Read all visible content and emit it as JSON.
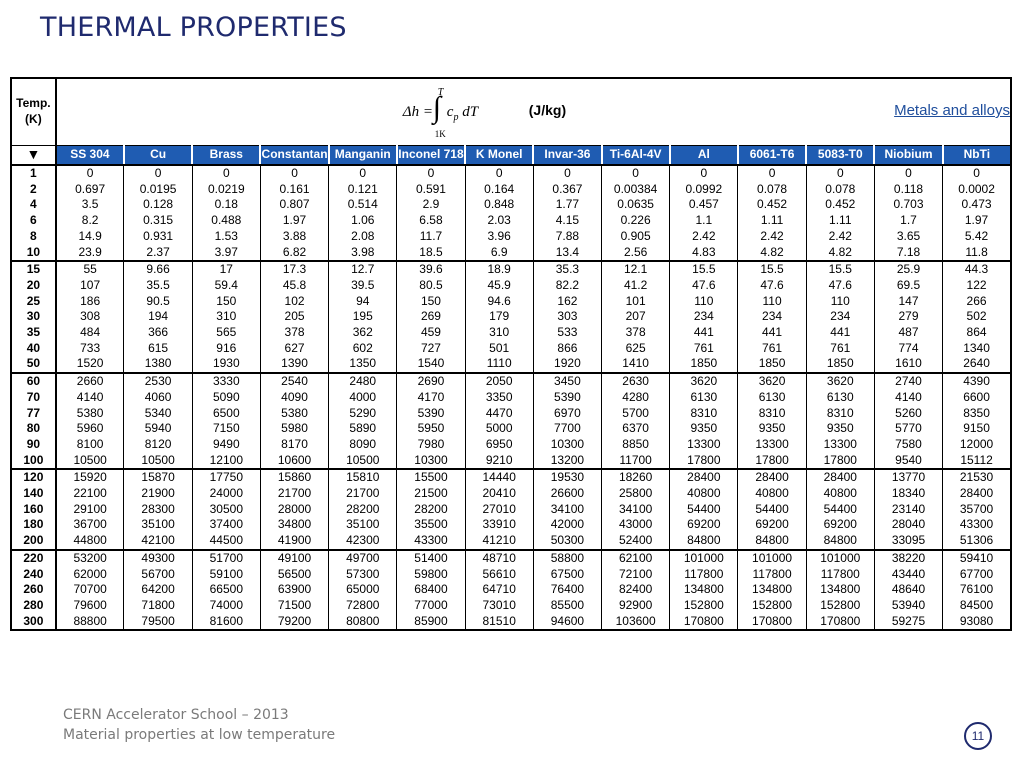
{
  "title": "THERMAL PROPERTIES",
  "header": {
    "temp_label_line1": "Temp.",
    "temp_label_line2": "(K)",
    "arrow": "▼",
    "formula": {
      "delta_h": "Δh =",
      "integral": "∫",
      "upper_limit": "T",
      "lower_limit": "1K",
      "integrand": "c",
      "integrand_sub": "p",
      "differential": "dT"
    },
    "unit": "(J/kg)",
    "link": "Metals and alloys"
  },
  "materials": [
    "SS 304",
    "Cu",
    "Brass",
    "Constantan",
    "Manganin",
    "Inconel 718",
    "K Monel",
    "Invar-36",
    "Ti-6Al-4V",
    "Al",
    "6061-T6",
    "5083-T0",
    "Niobium",
    "NbTi"
  ],
  "groups": [
    [
      {
        "t": "1",
        "v": [
          "0",
          "0",
          "0",
          "0",
          "0",
          "0",
          "0",
          "0",
          "0",
          "0",
          "0",
          "0",
          "0",
          "0"
        ]
      },
      {
        "t": "2",
        "v": [
          "0.697",
          "0.0195",
          "0.0219",
          "0.161",
          "0.121",
          "0.591",
          "0.164",
          "0.367",
          "0.00384",
          "0.0992",
          "0.078",
          "0.078",
          "0.118",
          "0.0002"
        ]
      },
      {
        "t": "4",
        "v": [
          "3.5",
          "0.128",
          "0.18",
          "0.807",
          "0.514",
          "2.9",
          "0.848",
          "1.77",
          "0.0635",
          "0.457",
          "0.452",
          "0.452",
          "0.703",
          "0.473"
        ]
      },
      {
        "t": "6",
        "v": [
          "8.2",
          "0.315",
          "0.488",
          "1.97",
          "1.06",
          "6.58",
          "2.03",
          "4.15",
          "0.226",
          "1.1",
          "1.11",
          "1.11",
          "1.7",
          "1.97"
        ]
      },
      {
        "t": "8",
        "v": [
          "14.9",
          "0.931",
          "1.53",
          "3.88",
          "2.08",
          "11.7",
          "3.96",
          "7.88",
          "0.905",
          "2.42",
          "2.42",
          "2.42",
          "3.65",
          "5.42"
        ]
      },
      {
        "t": "10",
        "v": [
          "23.9",
          "2.37",
          "3.97",
          "6.82",
          "3.98",
          "18.5",
          "6.9",
          "13.4",
          "2.56",
          "4.83",
          "4.82",
          "4.82",
          "7.18",
          "11.8"
        ]
      }
    ],
    [
      {
        "t": "15",
        "v": [
          "55",
          "9.66",
          "17",
          "17.3",
          "12.7",
          "39.6",
          "18.9",
          "35.3",
          "12.1",
          "15.5",
          "15.5",
          "15.5",
          "25.9",
          "44.3"
        ]
      },
      {
        "t": "20",
        "v": [
          "107",
          "35.5",
          "59.4",
          "45.8",
          "39.5",
          "80.5",
          "45.9",
          "82.2",
          "41.2",
          "47.6",
          "47.6",
          "47.6",
          "69.5",
          "122"
        ]
      },
      {
        "t": "25",
        "v": [
          "186",
          "90.5",
          "150",
          "102",
          "94",
          "150",
          "94.6",
          "162",
          "101",
          "110",
          "110",
          "110",
          "147",
          "266"
        ]
      },
      {
        "t": "30",
        "v": [
          "308",
          "194",
          "310",
          "205",
          "195",
          "269",
          "179",
          "303",
          "207",
          "234",
          "234",
          "234",
          "279",
          "502"
        ]
      },
      {
        "t": "35",
        "v": [
          "484",
          "366",
          "565",
          "378",
          "362",
          "459",
          "310",
          "533",
          "378",
          "441",
          "441",
          "441",
          "487",
          "864"
        ]
      },
      {
        "t": "40",
        "v": [
          "733",
          "615",
          "916",
          "627",
          "602",
          "727",
          "501",
          "866",
          "625",
          "761",
          "761",
          "761",
          "774",
          "1340"
        ]
      },
      {
        "t": "50",
        "v": [
          "1520",
          "1380",
          "1930",
          "1390",
          "1350",
          "1540",
          "1110",
          "1920",
          "1410",
          "1850",
          "1850",
          "1850",
          "1610",
          "2640"
        ]
      }
    ],
    [
      {
        "t": "60",
        "v": [
          "2660",
          "2530",
          "3330",
          "2540",
          "2480",
          "2690",
          "2050",
          "3450",
          "2630",
          "3620",
          "3620",
          "3620",
          "2740",
          "4390"
        ]
      },
      {
        "t": "70",
        "v": [
          "4140",
          "4060",
          "5090",
          "4090",
          "4000",
          "4170",
          "3350",
          "5390",
          "4280",
          "6130",
          "6130",
          "6130",
          "4140",
          "6600"
        ]
      },
      {
        "t": "77",
        "v": [
          "5380",
          "5340",
          "6500",
          "5380",
          "5290",
          "5390",
          "4470",
          "6970",
          "5700",
          "8310",
          "8310",
          "8310",
          "5260",
          "8350"
        ]
      },
      {
        "t": "80",
        "v": [
          "5960",
          "5940",
          "7150",
          "5980",
          "5890",
          "5950",
          "5000",
          "7700",
          "6370",
          "9350",
          "9350",
          "9350",
          "5770",
          "9150"
        ]
      },
      {
        "t": "90",
        "v": [
          "8100",
          "8120",
          "9490",
          "8170",
          "8090",
          "7980",
          "6950",
          "10300",
          "8850",
          "13300",
          "13300",
          "13300",
          "7580",
          "12000"
        ]
      },
      {
        "t": "100",
        "v": [
          "10500",
          "10500",
          "12100",
          "10600",
          "10500",
          "10300",
          "9210",
          "13200",
          "11700",
          "17800",
          "17800",
          "17800",
          "9540",
          "15112"
        ]
      }
    ],
    [
      {
        "t": "120",
        "v": [
          "15920",
          "15870",
          "17750",
          "15860",
          "15810",
          "15500",
          "14440",
          "19530",
          "18260",
          "28400",
          "28400",
          "28400",
          "13770",
          "21530"
        ]
      },
      {
        "t": "140",
        "v": [
          "22100",
          "21900",
          "24000",
          "21700",
          "21700",
          "21500",
          "20410",
          "26600",
          "25800",
          "40800",
          "40800",
          "40800",
          "18340",
          "28400"
        ]
      },
      {
        "t": "160",
        "v": [
          "29100",
          "28300",
          "30500",
          "28000",
          "28200",
          "28200",
          "27010",
          "34100",
          "34100",
          "54400",
          "54400",
          "54400",
          "23140",
          "35700"
        ]
      },
      {
        "t": "180",
        "v": [
          "36700",
          "35100",
          "37400",
          "34800",
          "35100",
          "35500",
          "33910",
          "42000",
          "43000",
          "69200",
          "69200",
          "69200",
          "28040",
          "43300"
        ]
      },
      {
        "t": "200",
        "v": [
          "44800",
          "42100",
          "44500",
          "41900",
          "42300",
          "43300",
          "41210",
          "50300",
          "52400",
          "84800",
          "84800",
          "84800",
          "33095",
          "51306"
        ]
      }
    ],
    [
      {
        "t": "220",
        "v": [
          "53200",
          "49300",
          "51700",
          "49100",
          "49700",
          "51400",
          "48710",
          "58800",
          "62100",
          "101000",
          "101000",
          "101000",
          "38220",
          "59410"
        ]
      },
      {
        "t": "240",
        "v": [
          "62000",
          "56700",
          "59100",
          "56500",
          "57300",
          "59800",
          "56610",
          "67500",
          "72100",
          "117800",
          "117800",
          "117800",
          "43440",
          "67700"
        ]
      },
      {
        "t": "260",
        "v": [
          "70700",
          "64200",
          "66500",
          "63900",
          "65000",
          "68400",
          "64710",
          "76400",
          "82400",
          "134800",
          "134800",
          "134800",
          "48640",
          "76100"
        ]
      },
      {
        "t": "280",
        "v": [
          "79600",
          "71800",
          "74000",
          "71500",
          "72800",
          "77000",
          "73010",
          "85500",
          "92900",
          "152800",
          "152800",
          "152800",
          "53940",
          "84500"
        ]
      },
      {
        "t": "300",
        "v": [
          "88800",
          "79500",
          "81600",
          "79200",
          "80800",
          "85900",
          "81510",
          "94600",
          "103600",
          "170800",
          "170800",
          "170800",
          "59275",
          "93080"
        ]
      }
    ]
  ],
  "footer": {
    "line1": "CERN Accelerator School – 2013",
    "line2": "Material properties at low temperature",
    "page": "11"
  }
}
